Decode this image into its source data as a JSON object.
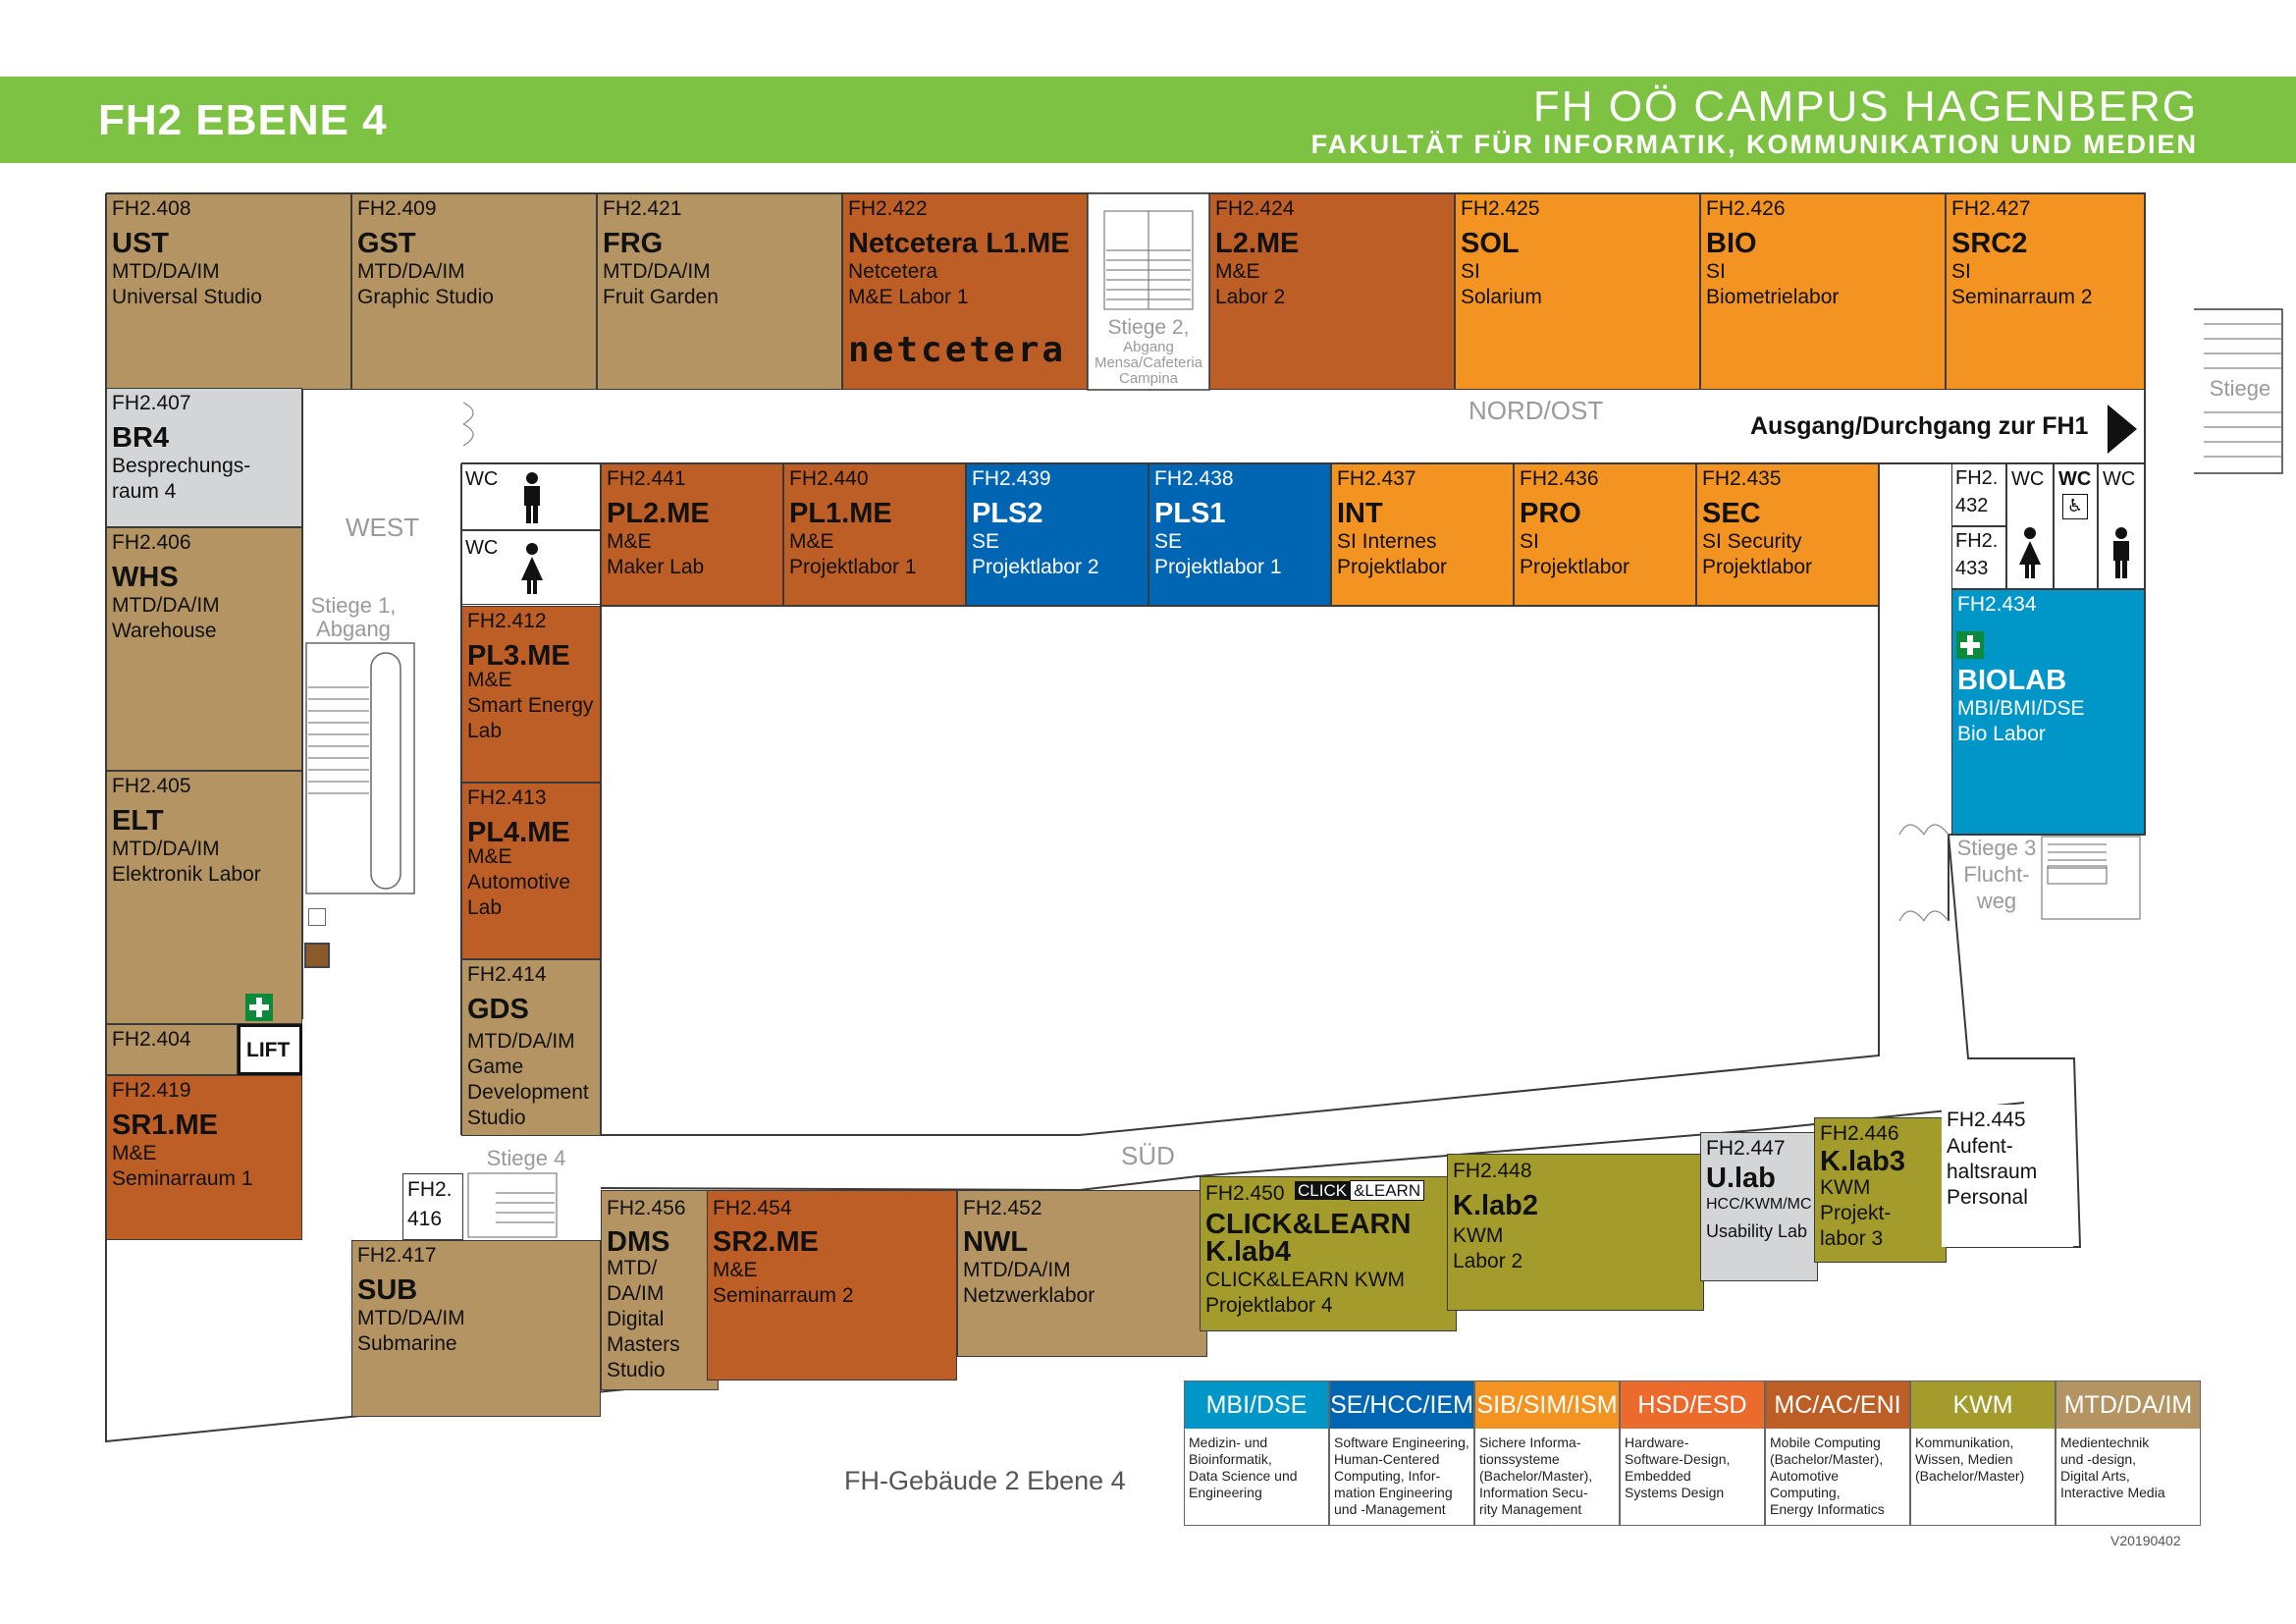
{
  "header": {
    "floor_title": "FH2 EBENE 4",
    "campus": "FH OÖ CAMPUS HAGENBERG",
    "faculty": "FAKULTÄT FÜR INFORMATIK, KOMMUNIKATION UND MEDIEN"
  },
  "colors": {
    "brown_mtd": "#b39462",
    "orange_mc": "#bd5e27",
    "orange_sib": "#f39321",
    "blue_se": "#0066b3",
    "cyan_mbi": "#0096c8",
    "olive_kwm": "#a39c2d",
    "grey": "#d4d5d7",
    "hsd": "#ec6a2c",
    "green_header": "#7dc242"
  },
  "corridors": {
    "west": "WEST",
    "north_east": "NORD/OST",
    "south": "SÜD"
  },
  "exit": "Ausgang/Durchgang zur FH1",
  "stairs": {
    "s1": [
      "Stiege 1,",
      "Abgang"
    ],
    "s2": [
      "Stiege 2,",
      "Abgang",
      "Mensa/Cafeteria",
      "Campina"
    ],
    "s3": [
      "Stiege 3",
      "Flucht-",
      "weg"
    ],
    "s4": "Stiege 4",
    "east": "Stiege"
  },
  "wc": {
    "wc1": "WC",
    "wc2": "WC",
    "wc3": "WC",
    "wc4": "WC",
    "wc5": "WC"
  },
  "lift": "LIFT",
  "logos": {
    "netcetera": "netcetera",
    "click_learn": [
      "CLICK",
      "&LEARN"
    ]
  },
  "rooms": {
    "r408": {
      "num": "FH2.408",
      "code": "UST",
      "l1": "MTD/DA/IM",
      "l2": "Universal Studio"
    },
    "r409": {
      "num": "FH2.409",
      "code": "GST",
      "l1": "MTD/DA/IM",
      "l2": "Graphic Studio"
    },
    "r421": {
      "num": "FH2.421",
      "code": "FRG",
      "l1": "MTD/DA/IM",
      "l2": "Fruit Garden"
    },
    "r422": {
      "num": "FH2.422",
      "code": "Netcetera L1.ME",
      "l1": "Netcetera",
      "l2": "M&E Labor 1"
    },
    "r424": {
      "num": "FH2.424",
      "code": "L2.ME",
      "l1": "M&E",
      "l2": "Labor 2"
    },
    "r425": {
      "num": "FH2.425",
      "code": "SOL",
      "l1": "SI",
      "l2": "Solarium"
    },
    "r426": {
      "num": "FH2.426",
      "code": "BIO",
      "l1": "SI",
      "l2": "Biometrielabor"
    },
    "r427": {
      "num": "FH2.427",
      "code": "SRC2",
      "l1": "SI",
      "l2": "Seminarraum 2"
    },
    "r407": {
      "num": "FH2.407",
      "code": "BR4",
      "l1": "Besprechungs-",
      "l2": "raum 4"
    },
    "r406": {
      "num": "FH2.406",
      "code": "WHS",
      "l1": "MTD/DA/IM",
      "l2": "Warehouse"
    },
    "r405": {
      "num": "FH2.405",
      "code": "ELT",
      "l1": "MTD/DA/IM",
      "l2": "Elektronik Labor"
    },
    "r404": {
      "num": "FH2.404"
    },
    "r419": {
      "num": "FH2.419",
      "code": "SR1.ME",
      "l1": "M&E",
      "l2": "Seminarraum 1"
    },
    "r441": {
      "num": "FH2.441",
      "code": "PL2.ME",
      "l1": "M&E",
      "l2": "Maker Lab"
    },
    "r440": {
      "num": "FH2.440",
      "code": "PL1.ME",
      "l1": "M&E",
      "l2": "Projektlabor 1"
    },
    "r439": {
      "num": "FH2.439",
      "code": "PLS2",
      "l1": "SE",
      "l2": "Projektlabor 2"
    },
    "r438": {
      "num": "FH2.438",
      "code": "PLS1",
      "l1": "SE",
      "l2": "Projektlabor 1"
    },
    "r437": {
      "num": "FH2.437",
      "code": "INT",
      "l1": "SI Internes",
      "l2": "Projektlabor"
    },
    "r436": {
      "num": "FH2.436",
      "code": "PRO",
      "l1": "SI",
      "l2": "Projektlabor"
    },
    "r435": {
      "num": "FH2.435",
      "code": "SEC",
      "l1": "SI Security",
      "l2": "Projektlabor"
    },
    "r412": {
      "num": "FH2.412",
      "code": "PL3.ME",
      "l1": "M&E",
      "l2": "Smart Energy",
      "l3": "Lab"
    },
    "r413": {
      "num": "FH2.413",
      "code": "PL4.ME",
      "l1": "M&E",
      "l2": "Automotive",
      "l3": "Lab"
    },
    "r414": {
      "num": "FH2.414",
      "code": "GDS",
      "l1": "MTD/DA/IM",
      "l2": "Game",
      "l3": "Development",
      "l4": "Studio"
    },
    "r432": {
      "num1": "FH2.",
      "num2": "432"
    },
    "r433": {
      "num1": "FH2.",
      "num2": "433"
    },
    "r434": {
      "num": "FH2.434",
      "code": "BIOLAB",
      "l1": "MBI/BMI/DSE",
      "l2": "Bio Labor"
    },
    "r416": {
      "num1": "FH2.",
      "num2": "416"
    },
    "r417": {
      "num": "FH2.417",
      "code": "SUB",
      "l1": "MTD/DA/IM",
      "l2": "Submarine"
    },
    "r456": {
      "num": "FH2.456",
      "code": "DMS",
      "l1": "MTD/",
      "l2": "DA/IM",
      "l3": "Digital",
      "l4": "Masters",
      "l5": "Studio"
    },
    "r454": {
      "num": "FH2.454",
      "code": "SR2.ME",
      "l1": "M&E",
      "l2": "Seminarraum 2"
    },
    "r452": {
      "num": "FH2.452",
      "code": "NWL",
      "l1": "MTD/DA/IM",
      "l2": "Netzwerklabor"
    },
    "r450": {
      "num": "FH2.450",
      "code": "CLICK&LEARN",
      "code2": "K.lab4",
      "l1": "CLICK&LEARN KWM",
      "l2": "Projektlabor 4"
    },
    "r448": {
      "num": "FH2.448",
      "code": "K.lab2",
      "l1": "KWM",
      "l2": "Labor 2"
    },
    "r447": {
      "num": "FH2.447",
      "code": "U.lab",
      "l1": "HCC/KWM/MC",
      "l2": "Usability Lab"
    },
    "r446": {
      "num": "FH2.446",
      "code": "K.lab3",
      "l1": "KWM",
      "l2": "Projekt-",
      "l3": "labor 3"
    },
    "r445": {
      "num": "FH2.445",
      "l1": "Aufent-",
      "l2": "haltsraum",
      "l3": "Personal"
    }
  },
  "legend": [
    {
      "head": "MBI/DSE",
      "color": "#0096c8",
      "desc": [
        "Medizin- und",
        "Bioinformatik,",
        "Data Science und",
        "Engineering"
      ]
    },
    {
      "head": "SE/HCC/IEM",
      "color": "#0066b3",
      "desc": [
        "Software Engineering,",
        "Human-Centered",
        "Computing, Infor-",
        "mation Engineering",
        "und -Management"
      ]
    },
    {
      "head": "SIB/SIM/ISM",
      "color": "#f39321",
      "desc": [
        "Sichere Informa-",
        "tionssysteme",
        "(Bachelor/Master),",
        "Information Secu-",
        "rity Management"
      ]
    },
    {
      "head": "HSD/ESD",
      "color": "#ec6a2c",
      "desc": [
        "Hardware-",
        "Software-Design,",
        "Embedded",
        "Systems Design"
      ]
    },
    {
      "head": "MC/AC/ENI",
      "color": "#bd5e27",
      "desc": [
        "Mobile Computing",
        "(Bachelor/Master),",
        "Automotive",
        "Computing,",
        "Energy Informatics"
      ]
    },
    {
      "head": "KWM",
      "color": "#a39c2d",
      "desc": [
        "Kommunikation,",
        "Wissen, Medien",
        "(Bachelor/Master)"
      ]
    },
    {
      "head": "MTD/DA/IM",
      "color": "#b39462",
      "desc": [
        "Medientechnik",
        "und -design,",
        "Digital Arts,",
        "Interactive Media"
      ]
    }
  ],
  "building": "FH-Gebäude 2 Ebene 4",
  "version": "V20190402"
}
